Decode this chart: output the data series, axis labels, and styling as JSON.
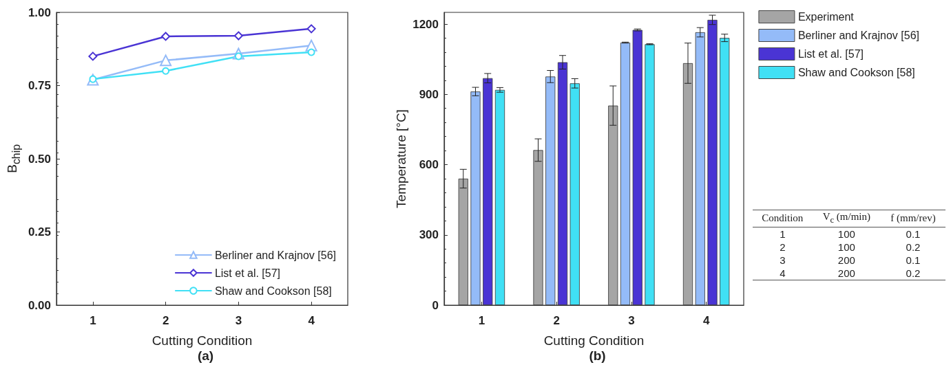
{
  "chart_data": [
    {
      "type": "line",
      "title": "(a)",
      "xlabel": "Cutting Condition",
      "ylabel": "B$_{chip}$",
      "categories": [
        "1",
        "2",
        "3",
        "4"
      ],
      "ylim": [
        0,
        1
      ],
      "yticks": [
        {
          "value": 0,
          "label": "0.00"
        },
        {
          "value": 0.25,
          "label": "0.25"
        },
        {
          "value": 0.5,
          "label": "0.50"
        },
        {
          "value": 0.75,
          "label": "0.75"
        },
        {
          "value": 1,
          "label": "1.00"
        }
      ],
      "grid": false,
      "legend": "bottom right",
      "line_style": "solid",
      "series": [
        {
          "name": "Berliner and Krajnov [56]",
          "color": "#94bbf8",
          "marker": "triangle",
          "values": [
            0.77,
            0.836,
            0.859,
            0.887
          ]
        },
        {
          "name": "List et al. [57]",
          "color": "#4a34d4",
          "marker": "diamond",
          "values": [
            0.85,
            0.918,
            0.92,
            0.944
          ]
        },
        {
          "name": "Shaw and Cookson [58]",
          "color": "#40e0f5",
          "marker": "circle",
          "values": [
            0.772,
            0.8,
            0.85,
            0.864
          ]
        }
      ]
    },
    {
      "type": "bar",
      "title": "(b)",
      "xlabel": "Cutting Condition",
      "ylabel": "Temperature [°C]",
      "categories": [
        "1",
        "2",
        "3",
        "4"
      ],
      "ylim": [
        0,
        1250
      ],
      "yticks": [
        0,
        300,
        600,
        900,
        1200
      ],
      "grid": false,
      "legend": "top right",
      "series": [
        {
          "name": "Experiment",
          "color": "#a5a5a5",
          "values": [
            540,
            662,
            852,
            1033
          ],
          "errors": [
            40,
            48,
            84,
            86
          ]
        },
        {
          "name": "Berliner and Krajnov [56]",
          "color": "#94bbf8",
          "values": [
            912,
            976,
            1121,
            1165
          ],
          "errors": [
            18,
            26,
            2,
            20
          ]
        },
        {
          "name": "List et al. [57]",
          "color": "#4a34d4",
          "values": [
            969,
            1037,
            1175,
            1218
          ],
          "errors": [
            20,
            29,
            4,
            20
          ]
        },
        {
          "name": "Shaw and Cookson [58]",
          "color": "#40e0f5",
          "values": [
            919,
            947,
            1114,
            1141
          ],
          "errors": [
            10,
            20,
            2,
            16
          ]
        }
      ],
      "annotations": [
        "Condition",
        "V$_{c}$ (m/min)",
        "f (mm/rev)",
        "1",
        "100",
        "0.1",
        "2",
        "100",
        "0.2",
        "3",
        "200",
        "0.1",
        "4",
        "200",
        "0.2"
      ]
    }
  ]
}
